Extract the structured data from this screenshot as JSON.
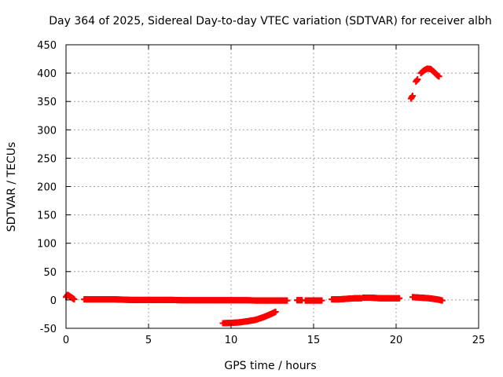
{
  "chart_data": {
    "type": "scatter",
    "title": "Day 364 of 2025, Sidereal Day-to-day VTEC variation (SDTVAR) for receiver albh",
    "xlabel": "GPS time / hours",
    "ylabel": "SDTVAR / TECUs",
    "xlim": [
      0,
      25
    ],
    "ylim": [
      -50,
      450
    ],
    "x_ticks": [
      "0",
      "5",
      "10",
      "15",
      "20",
      "25"
    ],
    "y_ticks": [
      "-50",
      "0",
      "50",
      "100",
      "150",
      "200",
      "250",
      "300",
      "350",
      "400",
      "450"
    ],
    "grid": true,
    "marker": "+",
    "series_color": "#ff0000",
    "segments": [
      {
        "points": [
          [
            0.0,
            5
          ],
          [
            0.1,
            9
          ],
          [
            0.2,
            7
          ],
          [
            0.3,
            5
          ],
          [
            0.4,
            3
          ],
          [
            0.5,
            1
          ]
        ]
      },
      {
        "points": [
          [
            1.1,
            1
          ],
          [
            1.5,
            1
          ],
          [
            2.0,
            1
          ],
          [
            2.5,
            1
          ],
          [
            3.0,
            1
          ],
          [
            3.5,
            0.5
          ],
          [
            4.0,
            0
          ],
          [
            4.5,
            0
          ],
          [
            5.0,
            0
          ],
          [
            5.5,
            0
          ],
          [
            6.0,
            0
          ],
          [
            6.5,
            0
          ],
          [
            7.0,
            -0.5
          ],
          [
            7.5,
            -0.5
          ],
          [
            8.0,
            -0.5
          ],
          [
            8.5,
            -0.5
          ],
          [
            9.0,
            -0.5
          ],
          [
            9.5,
            -0.5
          ],
          [
            10.0,
            -0.5
          ],
          [
            10.5,
            -0.5
          ],
          [
            11.0,
            -0.5
          ],
          [
            11.5,
            -1
          ],
          [
            12.0,
            -1
          ],
          [
            12.5,
            -1
          ],
          [
            13.0,
            -1
          ],
          [
            13.4,
            -1
          ]
        ]
      },
      {
        "points": [
          [
            9.5,
            -41
          ],
          [
            10.0,
            -40.5
          ],
          [
            10.5,
            -39.5
          ],
          [
            11.0,
            -37.5
          ],
          [
            11.5,
            -35
          ],
          [
            12.0,
            -30
          ],
          [
            12.4,
            -25
          ],
          [
            12.7,
            -21
          ]
        ]
      },
      {
        "points": [
          [
            14.0,
            -0.5
          ],
          [
            14.3,
            -0.5
          ]
        ]
      },
      {
        "points": [
          [
            14.5,
            -1
          ],
          [
            15.0,
            -1
          ],
          [
            15.5,
            -1
          ]
        ]
      },
      {
        "points": [
          [
            16.1,
            1
          ],
          [
            16.5,
            1
          ],
          [
            17.0,
            2
          ],
          [
            17.5,
            3
          ],
          [
            17.9,
            3
          ]
        ]
      },
      {
        "points": [
          [
            18.0,
            4
          ],
          [
            18.5,
            4
          ],
          [
            19.0,
            3
          ],
          [
            19.5,
            3
          ],
          [
            20.0,
            3
          ],
          [
            20.2,
            3
          ]
        ]
      },
      {
        "points": [
          [
            20.9,
            355
          ],
          [
            21.0,
            360
          ]
        ]
      },
      {
        "points": [
          [
            21.2,
            385
          ],
          [
            21.3,
            389
          ]
        ]
      },
      {
        "points": [
          [
            21.5,
            400
          ],
          [
            21.7,
            405
          ],
          [
            21.9,
            408
          ],
          [
            22.1,
            407
          ],
          [
            22.3,
            402
          ],
          [
            22.5,
            396
          ],
          [
            22.6,
            394
          ]
        ]
      },
      {
        "points": [
          [
            21.0,
            5
          ],
          [
            21.5,
            4
          ],
          [
            22.0,
            3
          ],
          [
            22.5,
            1
          ],
          [
            22.8,
            -1
          ]
        ]
      }
    ]
  }
}
